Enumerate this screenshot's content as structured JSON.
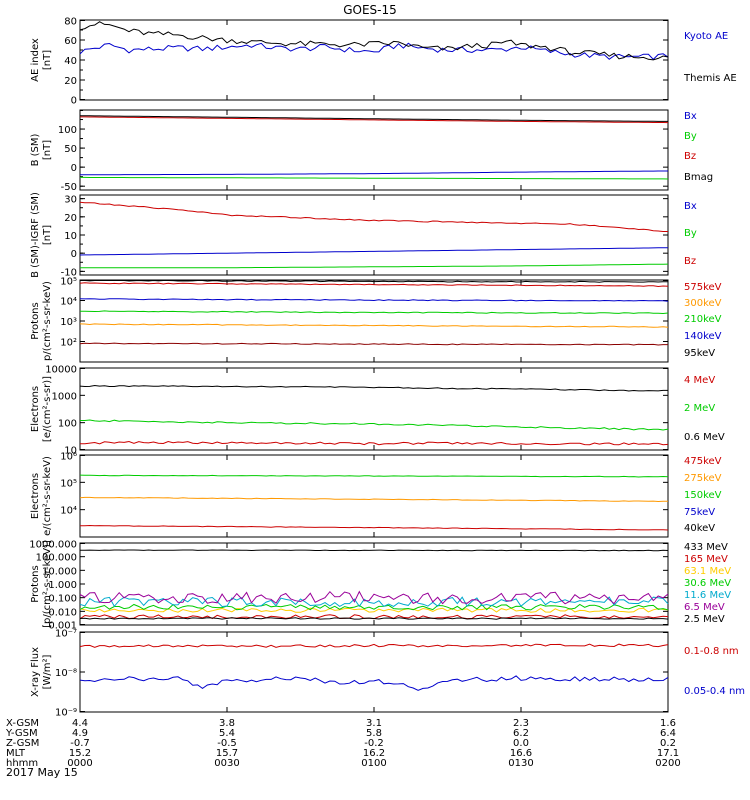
{
  "chart_data": {
    "type": "line",
    "title": "GOES-15",
    "time_ticks": [
      "0000",
      "0030",
      "0100",
      "0130",
      "0200"
    ],
    "panels": [
      {
        "id": "ae",
        "ylabel": [
          "AE index",
          "[nT]"
        ],
        "scale": "linear",
        "ylim": [
          0,
          80
        ],
        "ticks": [
          0,
          20,
          40,
          60,
          80
        ],
        "tick_labels": [
          "0",
          "20",
          "40",
          "60",
          "80"
        ],
        "series": [
          {
            "name": "Kyoto AE",
            "color": "#0000cc",
            "wiggle": 3,
            "x": [
              0,
              3,
              6,
              10,
              15,
              20,
              25,
              30,
              35,
              40,
              45,
              50,
              55,
              60,
              65,
              70,
              75,
              80,
              84,
              87,
              90,
              95,
              100,
              105,
              110,
              115,
              120
            ],
            "y": [
              48,
              52,
              55,
              50,
              51,
              52,
              51,
              53,
              55,
              52,
              51,
              53,
              50,
              48,
              55,
              52,
              50,
              50,
              50,
              51,
              53,
              49,
              46,
              44,
              43,
              43,
              44
            ]
          },
          {
            "name": "Themis AE",
            "color": "#000000",
            "wiggle": 3,
            "x": [
              0,
              3,
              6,
              10,
              15,
              20,
              25,
              30,
              35,
              40,
              45,
              50,
              55,
              60,
              65,
              70,
              75,
              80,
              84,
              87,
              90,
              95,
              100,
              105,
              110,
              115,
              120
            ],
            "y": [
              73,
              76,
              75,
              69,
              66,
              65,
              62,
              60,
              58,
              57,
              56,
              56,
              55,
              56,
              57,
              52,
              51,
              54,
              55,
              58,
              55,
              53,
              48,
              46,
              44,
              43,
              42
            ]
          }
        ]
      },
      {
        "id": "bsm",
        "ylabel": [
          "B (SM)",
          "[nT]"
        ],
        "scale": "linear",
        "ylim": [
          -60,
          150
        ],
        "ticks": [
          -50,
          0,
          50,
          100
        ],
        "tick_labels": [
          "-50",
          "0",
          "50",
          "100"
        ],
        "series": [
          {
            "name": "Bx",
            "color": "#0000cc",
            "wiggle": 0,
            "x": [
              0,
              30,
              60,
              90,
              120
            ],
            "y": [
              -20,
              -19,
              -17,
              -13,
              -10
            ]
          },
          {
            "name": "By",
            "color": "#00cc00",
            "wiggle": 0,
            "x": [
              0,
              30,
              60,
              90,
              120
            ],
            "y": [
              -27,
              -28,
              -29,
              -30,
              -31
            ]
          },
          {
            "name": "Bz",
            "color": "#cc0000",
            "wiggle": 0,
            "x": [
              0,
              30,
              60,
              90,
              120
            ],
            "y": [
              132,
              128,
              124,
              120,
              117
            ]
          },
          {
            "name": "Bmag",
            "color": "#000000",
            "wiggle": 0,
            "x": [
              0,
              30,
              60,
              90,
              120
            ],
            "y": [
              135,
              131,
              127,
              123,
              120
            ]
          }
        ]
      },
      {
        "id": "bigrf",
        "ylabel": [
          "B (SM)-IGRF (SM)",
          "[nT]"
        ],
        "scale": "linear",
        "ylim": [
          -12,
          32
        ],
        "ticks": [
          -10,
          0,
          10,
          20,
          30
        ],
        "tick_labels": [
          "-10",
          "0",
          "10",
          "20",
          "30"
        ],
        "series": [
          {
            "name": "Bx",
            "color": "#0000cc",
            "wiggle": 0,
            "x": [
              0,
              30,
              60,
              90,
              120
            ],
            "y": [
              -1,
              0,
              1,
              2,
              3
            ]
          },
          {
            "name": "By",
            "color": "#00cc00",
            "wiggle": 0,
            "x": [
              0,
              30,
              60,
              90,
              120
            ],
            "y": [
              -8,
              -8,
              -7.5,
              -7,
              -6
            ]
          },
          {
            "name": "Bz",
            "color": "#cc0000",
            "wiggle": 0.3,
            "x": [
              0,
              10,
              20,
              30,
              40,
              50,
              60,
              70,
              80,
              90,
              100,
              110,
              120
            ],
            "y": [
              28,
              26,
              24,
              21,
              20,
              19,
              18,
              17.5,
              17,
              16.5,
              16,
              14,
              12
            ]
          }
        ]
      },
      {
        "id": "protons",
        "ylabel": [
          "Protons",
          "p/(cm²-s-sr-keV)"
        ],
        "scale": "log",
        "ylim": [
          10,
          100000
        ],
        "ticks": [
          100,
          1000,
          10000,
          100000
        ],
        "tick_labels": [
          "10²",
          "10³",
          "10⁴",
          "10⁵"
        ],
        "series": [
          {
            "name": "575keV",
            "color": "#cc0000",
            "wiggle": 0.02,
            "x": [
              0,
              30,
              60,
              90,
              120
            ],
            "y": [
              70000,
              65000,
              60000,
              55000,
              50000
            ]
          },
          {
            "name": "300keV",
            "color": "#ff9900",
            "wiggle": 0.02,
            "x": [
              0,
              30,
              60,
              90,
              120
            ],
            "y": [
              700,
              650,
              600,
              550,
              520
            ]
          },
          {
            "name": "210keV",
            "color": "#00cc00",
            "wiggle": 0.02,
            "x": [
              0,
              30,
              60,
              90,
              120
            ],
            "y": [
              3000,
              2800,
              2600,
              2500,
              2400
            ]
          },
          {
            "name": "140keV",
            "color": "#0000cc",
            "wiggle": 0.02,
            "x": [
              0,
              30,
              60,
              90,
              120
            ],
            "y": [
              12000,
              11000,
              10500,
              10000,
              9500
            ]
          },
          {
            "name": "95keV",
            "color": "#000000",
            "wiggle": 0.02,
            "x": [
              0,
              30,
              60,
              90,
              120
            ],
            "y": [
              95000,
              90000,
              85000,
              82000,
              80000
            ]
          },
          {
            "name": "",
            "color": "#8b0000",
            "wiggle": 0.02,
            "x": [
              0,
              30,
              60,
              90,
              120
            ],
            "y": [
              80,
              78,
              75,
              72,
              70
            ]
          }
        ]
      },
      {
        "id": "electrons_mev",
        "ylabel": [
          "Electrons",
          "[e/(cm²-s-sr)]"
        ],
        "scale": "log",
        "ylim": [
          10,
          10000
        ],
        "ticks": [
          10,
          100,
          1000,
          10000
        ],
        "tick_labels": [
          "10",
          "100",
          "1000",
          "10000"
        ],
        "series": [
          {
            "name": "4 MeV",
            "color": "#cc0000",
            "wiggle": 0.04,
            "x": [
              0,
              15,
              30,
              45,
              60,
              75,
              90,
              105,
              120
            ],
            "y": [
              18,
              19,
              18,
              18,
              17,
              18,
              17,
              17,
              16
            ]
          },
          {
            "name": "2 MeV",
            "color": "#00cc00",
            "wiggle": 0.03,
            "x": [
              0,
              15,
              30,
              45,
              60,
              75,
              90,
              105,
              120
            ],
            "y": [
              120,
              110,
              100,
              95,
              90,
              80,
              70,
              62,
              55
            ]
          },
          {
            "name": "0.6 MeV",
            "color": "#000000",
            "wiggle": 0.02,
            "x": [
              0,
              15,
              30,
              45,
              60,
              75,
              90,
              105,
              120
            ],
            "y": [
              2200,
              2150,
              2100,
              2050,
              1950,
              1800,
              1700,
              1550,
              1450
            ]
          }
        ]
      },
      {
        "id": "electrons_kev",
        "ylabel": [
          "Electrons",
          "e/(cm²-s-sr-keV)"
        ],
        "scale": "log",
        "ylim": [
          1000,
          1000000
        ],
        "ticks": [
          10000,
          100000,
          1000000
        ],
        "tick_labels": [
          "10⁴",
          "10⁵",
          "10⁶"
        ],
        "series": [
          {
            "name": "475keV",
            "color": "#cc0000",
            "wiggle": 0.01,
            "x": [
              0,
              30,
              60,
              90,
              120
            ],
            "y": [
              2600,
              2400,
              2200,
              2000,
              1800
            ]
          },
          {
            "name": "275keV",
            "color": "#ff9900",
            "wiggle": 0.01,
            "x": [
              0,
              30,
              60,
              90,
              120
            ],
            "y": [
              28000,
              26000,
              24000,
              22000,
              20000
            ]
          },
          {
            "name": "150keV",
            "color": "#00cc00",
            "wiggle": 0.01,
            "x": [
              0,
              30,
              60,
              90,
              120
            ],
            "y": [
              180000,
              175000,
              170000,
              165000,
              160000
            ]
          },
          {
            "name": "75keV",
            "color": "#0000cc",
            "wiggle": 0,
            "x": [],
            "y": []
          },
          {
            "name": "40keV",
            "color": "#000000",
            "wiggle": 0,
            "x": [],
            "y": []
          }
        ]
      },
      {
        "id": "protons_mev",
        "ylabel": [
          "Protons",
          "[p/(cm²-s-sr-keV)]"
        ],
        "scale": "log",
        "ylim": [
          0.001,
          1000
        ],
        "ticks": [
          0.001,
          0.01,
          0.1,
          1,
          10,
          100,
          1000
        ],
        "tick_labels": [
          "0.001",
          "0.010",
          "0.100",
          "1.000",
          "10.000",
          "100.000",
          "1000.000"
        ],
        "series": [
          {
            "name": "433 MeV",
            "color": "#000000",
            "wiggle": 0.02,
            "x": [
              0,
              30,
              60,
              90,
              120
            ],
            "y": [
              300,
              295,
              290,
              285,
              280
            ]
          },
          {
            "name": "165 MeV",
            "color": "#cc0000",
            "wiggle": 0.15,
            "x": [
              0,
              30,
              60,
              90,
              120
            ],
            "y": [
              0.004,
              0.004,
              0.004,
              0.004,
              0.004
            ]
          },
          {
            "name": "63.1 MeV",
            "color": "#ffcc00",
            "wiggle": 0.15,
            "x": [
              0,
              30,
              60,
              90,
              120
            ],
            "y": [
              0.012,
              0.012,
              0.012,
              0.012,
              0.012
            ]
          },
          {
            "name": "30.6 MeV",
            "color": "#00cc00",
            "wiggle": 0.2,
            "x": [
              0,
              30,
              60,
              90,
              120
            ],
            "y": [
              0.02,
              0.02,
              0.02,
              0.02,
              0.02
            ]
          },
          {
            "name": "11.6 MeV",
            "color": "#00aacc",
            "wiggle": 0.35,
            "x": [
              0,
              30,
              60,
              90,
              120
            ],
            "y": [
              0.05,
              0.05,
              0.05,
              0.05,
              0.05
            ]
          },
          {
            "name": "6.5 MeV",
            "color": "#990099",
            "wiggle": 0.45,
            "x": [
              0,
              30,
              60,
              90,
              120
            ],
            "y": [
              0.1,
              0.1,
              0.1,
              0.1,
              0.1
            ]
          },
          {
            "name": "2.5 MeV",
            "color": "#000000",
            "wiggle": 0.05,
            "x": [
              0,
              30,
              60,
              90,
              120
            ],
            "y": [
              0.003,
              0.003,
              0.003,
              0.003,
              0.003
            ]
          }
        ]
      },
      {
        "id": "xray",
        "ylabel": [
          "X-ray Flux",
          "[W/m²]"
        ],
        "scale": "log",
        "ylim": [
          1e-09,
          1e-07
        ],
        "ticks": [
          1e-09,
          1e-08,
          1e-07
        ],
        "tick_labels": [
          "10⁻⁹",
          "10⁻⁸",
          "10⁻⁷"
        ],
        "series": [
          {
            "name": "0.1-0.8 nm",
            "color": "#cc0000",
            "wiggle": 0.03,
            "x": [
              0,
              20,
              40,
              60,
              80,
              100,
              120
            ],
            "y": [
              4.3e-08,
              4.5e-08,
              4.4e-08,
              4.6e-08,
              4.5e-08,
              4.7e-08,
              4.6e-08
            ]
          },
          {
            "name": "0.05-0.4 nm",
            "color": "#0000cc",
            "wiggle": 0.06,
            "x": [
              0,
              10,
              20,
              25,
              30,
              45,
              55,
              60,
              70,
              75,
              80,
              90,
              100,
              110,
              120
            ],
            "y": [
              6.5e-09,
              6.8e-09,
              7e-09,
              4e-09,
              6.5e-09,
              6.6e-09,
              5.5e-09,
              6e-09,
              3.5e-09,
              6e-09,
              6.5e-09,
              7e-09,
              6.8e-09,
              6.5e-09,
              6.6e-09
            ]
          }
        ]
      }
    ]
  },
  "ephemeris": {
    "rows": [
      {
        "label": "X-GSM",
        "values": [
          "4.4",
          "3.8",
          "3.1",
          "2.3",
          "1.6"
        ]
      },
      {
        "label": "Y-GSM",
        "values": [
          "4.9",
          "5.4",
          "5.8",
          "6.2",
          "6.4"
        ]
      },
      {
        "label": "Z-GSM",
        "values": [
          "-0.7",
          "-0.5",
          "-0.2",
          "0.0",
          "0.2"
        ]
      },
      {
        "label": "MLT",
        "values": [
          "15.2",
          "15.7",
          "16.2",
          "16.6",
          "17.1"
        ]
      },
      {
        "label": "hhmm",
        "values": [
          "0000",
          "0030",
          "0100",
          "0130",
          "0200"
        ]
      }
    ],
    "date": "2017 May 15"
  }
}
